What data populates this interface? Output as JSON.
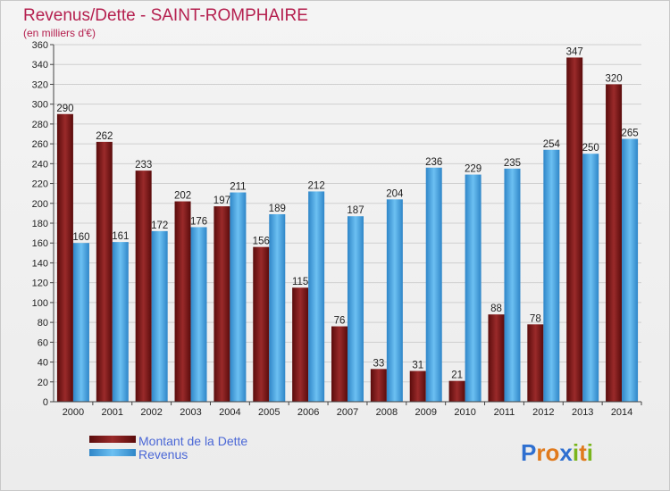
{
  "chart_data": {
    "type": "bar",
    "title": "Revenus/Dette - SAINT-ROMPHAIRE",
    "subtitle": "(en milliers d'€)",
    "categories": [
      "2000",
      "2001",
      "2002",
      "2003",
      "2004",
      "2005",
      "2006",
      "2007",
      "2008",
      "2009",
      "2010",
      "2011",
      "2012",
      "2013",
      "2014"
    ],
    "series": [
      {
        "name": "Montant de la Dette",
        "color": "#7b1414",
        "values": [
          290,
          262,
          233,
          202,
          197,
          156,
          115,
          76,
          33,
          31,
          21,
          88,
          78,
          347,
          320
        ]
      },
      {
        "name": "Revenus",
        "color": "#3d9ee0",
        "values": [
          160,
          161,
          172,
          176,
          211,
          189,
          212,
          187,
          204,
          236,
          229,
          235,
          254,
          250,
          265
        ]
      }
    ],
    "ylim": [
      0,
      360
    ],
    "yticks": [
      0,
      20,
      40,
      60,
      80,
      100,
      120,
      140,
      160,
      180,
      200,
      220,
      240,
      260,
      280,
      300,
      320,
      340,
      360
    ],
    "grid": true,
    "legend_position": "bottom-left"
  },
  "logo": {
    "letters": [
      "P",
      "r",
      "o",
      "x",
      "i",
      "t",
      "i"
    ],
    "colors": [
      "#2e6fd0",
      "#e07a1d",
      "#e07a1d",
      "#2e6fd0",
      "#7ab51d",
      "#e07a1d",
      "#7ab51d"
    ]
  }
}
